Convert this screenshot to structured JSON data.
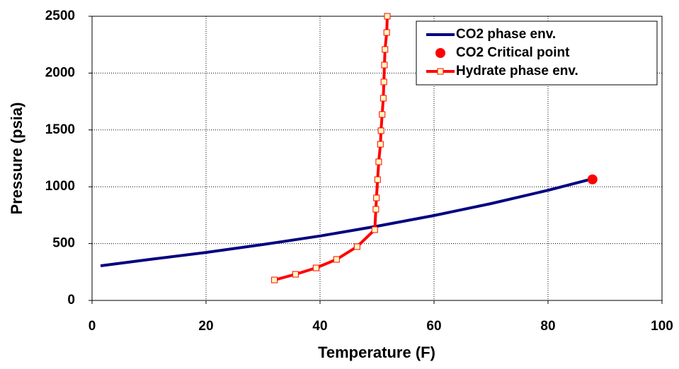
{
  "chart_data": {
    "type": "line",
    "xlabel": "Temperature (F)",
    "ylabel": "Pressure (psia)",
    "xlim": [
      0,
      100
    ],
    "xticks": [
      0,
      20,
      40,
      60,
      80,
      100
    ],
    "ylim": [
      0,
      2500
    ],
    "yticks": [
      0,
      500,
      1000,
      1500,
      2000,
      2500
    ],
    "grid": true,
    "legend": "upper right",
    "series": [
      {
        "name": "CO2 phase env.",
        "color": "#000080",
        "line": true,
        "marker": "none",
        "x": [
          1.5,
          10,
          20,
          30,
          40,
          50,
          60,
          70,
          80,
          87.8
        ],
        "values": [
          305,
          360,
          422,
          492,
          567,
          653,
          747,
          852,
          969,
          1070
        ]
      },
      {
        "name": "CO2 Critical point",
        "color": "#ff0000",
        "line": false,
        "marker": "circle",
        "x": [
          87.8
        ],
        "values": [
          1065
        ]
      },
      {
        "name": "Hydrate phase env.",
        "color": "#ff0000",
        "line": true,
        "marker": "square",
        "marker_fill": "#ffffc0",
        "x": [
          32.0,
          35.7,
          39.3,
          42.9,
          46.5,
          49.6,
          49.8,
          49.9,
          50.1,
          50.3,
          50.6,
          50.7,
          50.9,
          51.1,
          51.2,
          51.3,
          51.4,
          51.7,
          51.8
        ],
        "values": [
          180,
          230,
          286,
          361,
          473,
          622,
          802,
          902,
          1063,
          1219,
          1374,
          1493,
          1636,
          1779,
          1922,
          2071,
          2208,
          2357,
          2500
        ]
      }
    ]
  }
}
